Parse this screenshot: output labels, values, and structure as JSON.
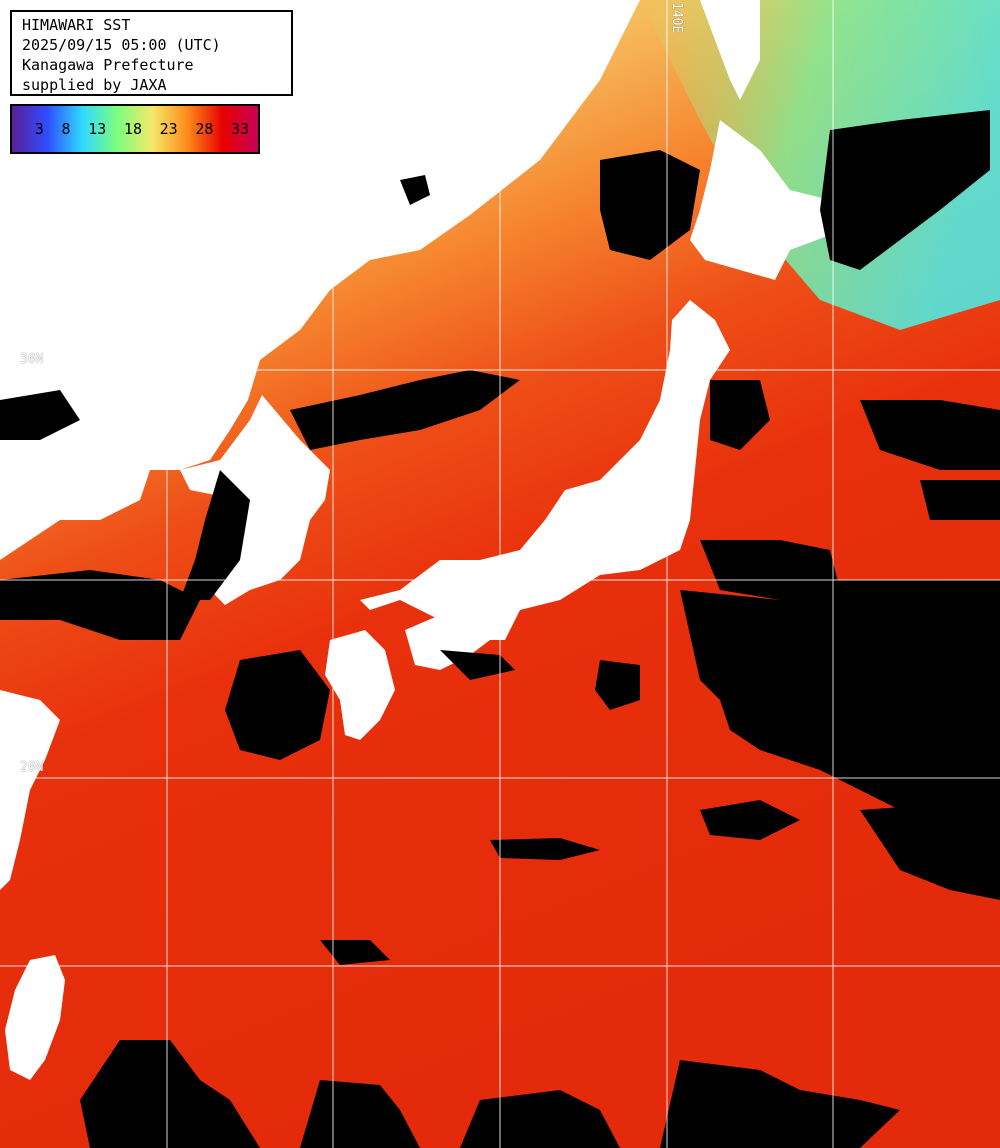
{
  "header": {
    "line1": "HIMAWARI SST",
    "line2": "2025/09/15 05:00 (UTC)",
    "line3": "Kanagawa Prefecture",
    "line4": "supplied by JAXA"
  },
  "legend": {
    "ticks": [
      "3",
      "8",
      "13",
      "18",
      "23",
      "28",
      "33"
    ],
    "colors": [
      "#5a1f9a",
      "#2f4dff",
      "#2fd9ff",
      "#7dff7d",
      "#f5e86b",
      "#ff8a1a",
      "#e60000",
      "#c8005a"
    ]
  },
  "grid": {
    "lat_labels": [
      "30N",
      "20N"
    ],
    "lon_labels": [
      "140E"
    ]
  },
  "colors": {
    "land": "#ffffff",
    "cloud": "#000000",
    "sea_warm": "#e8300c",
    "sea_mid": "#f6762a",
    "sea_cool": "#f2d66a",
    "sea_cold": "#7ef08a",
    "gridline": "#ffffff"
  }
}
